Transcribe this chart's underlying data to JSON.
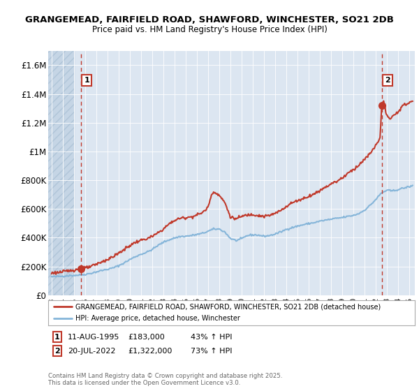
{
  "title": "GRANGEMEAD, FAIRFIELD ROAD, SHAWFORD, WINCHESTER, SO21 2DB",
  "subtitle": "Price paid vs. HM Land Registry's House Price Index (HPI)",
  "ylim": [
    0,
    1700000
  ],
  "yticks": [
    0,
    200000,
    400000,
    600000,
    800000,
    1000000,
    1200000,
    1400000,
    1600000
  ],
  "ytick_labels": [
    "£0",
    "£200K",
    "£400K",
    "£600K",
    "£800K",
    "£1M",
    "£1.2M",
    "£1.4M",
    "£1.6M"
  ],
  "xlim_start": 1992.7,
  "xlim_end": 2025.5,
  "background_color": "#ffffff",
  "plot_bg_color": "#dce6f1",
  "hatch_color": "#c5d5e5",
  "grid_color": "#ffffff",
  "red_color": "#c0392b",
  "blue_color": "#85b5d9",
  "transaction1_year": 1995.61,
  "transaction1_price": 183000,
  "transaction2_year": 2022.54,
  "transaction2_price": 1322000,
  "legend_line1": "GRANGEMEAD, FAIRFIELD ROAD, SHAWFORD, WINCHESTER, SO21 2DB (detached house)",
  "legend_line2": "HPI: Average price, detached house, Winchester",
  "footer": "Contains HM Land Registry data © Crown copyright and database right 2025.\nThis data is licensed under the Open Government Licence v3.0.",
  "transaction1_date": "11-AUG-1995",
  "transaction1_amount": "£183,000",
  "transaction1_hpi": "43% ↑ HPI",
  "transaction2_date": "20-JUL-2022",
  "transaction2_amount": "£1,322,000",
  "transaction2_hpi": "73% ↑ HPI"
}
